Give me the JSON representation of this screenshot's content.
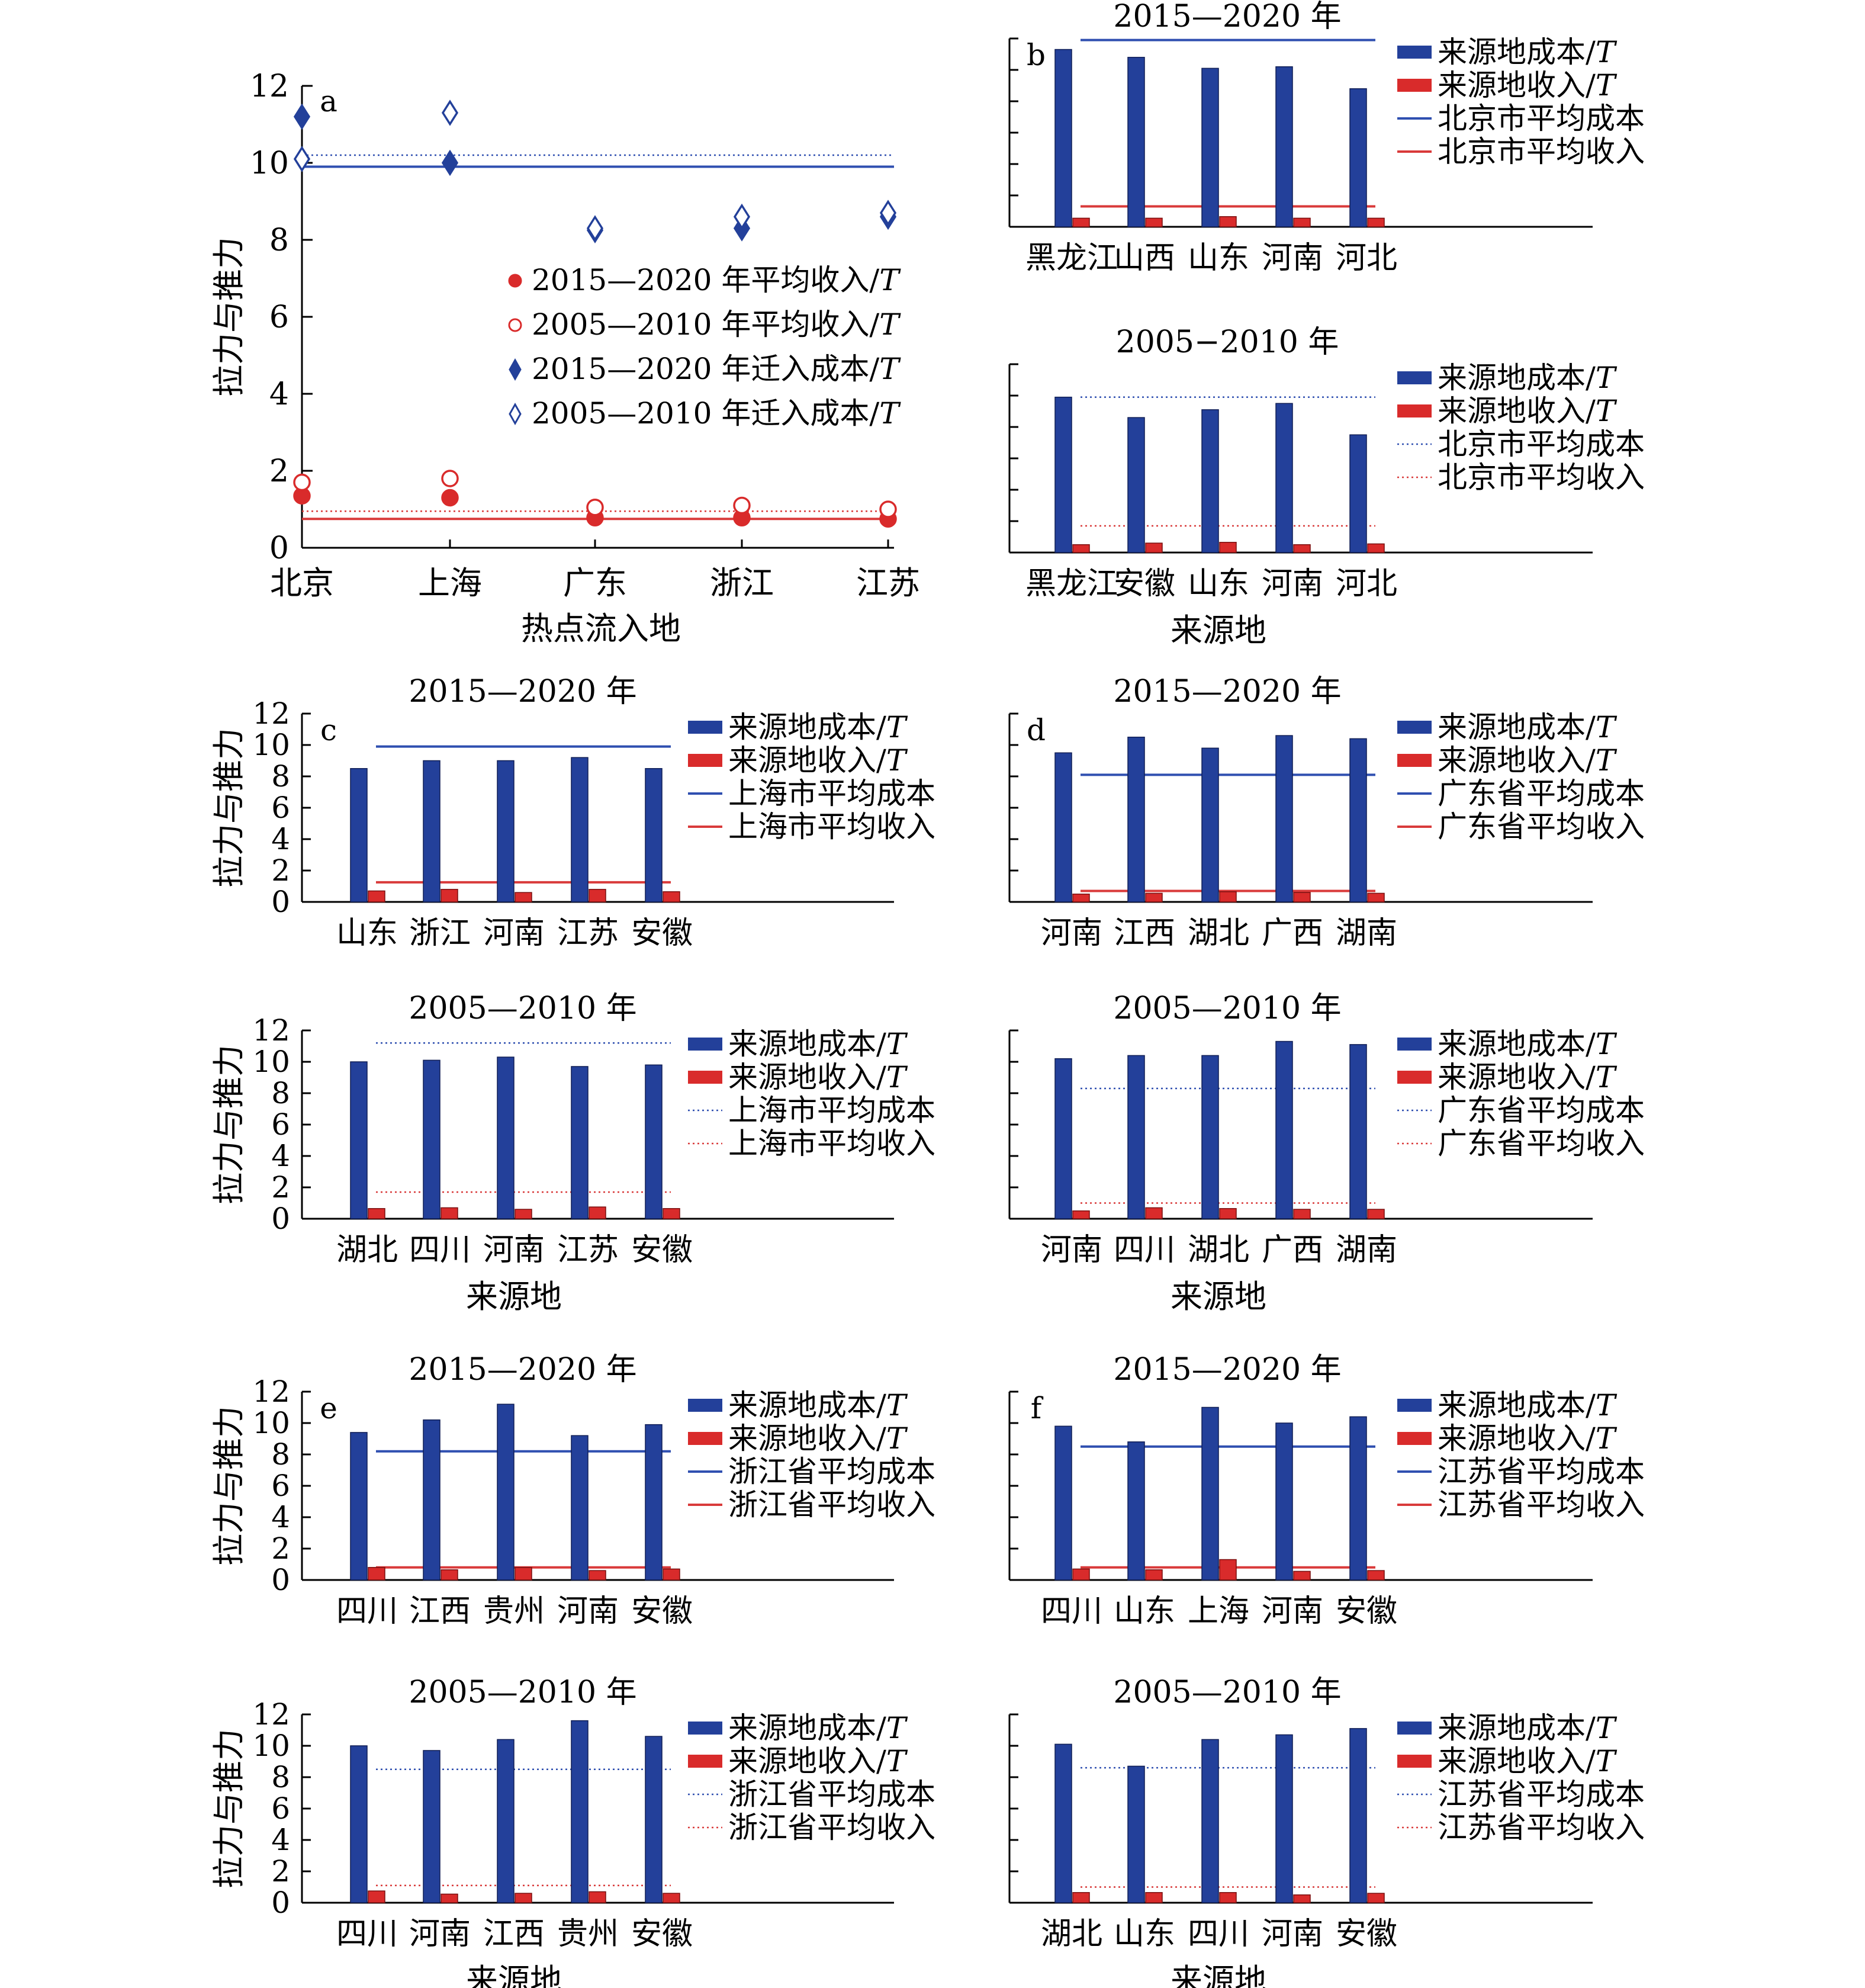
{
  "colors": {
    "cost": "#23409A",
    "income": "#D92B2B",
    "cost_line": "#2F4FB0",
    "income_line": "#D93A3A"
  },
  "chart_data": [
    {
      "id": "a",
      "type": "scatter",
      "panel_label": "a",
      "title": "",
      "xlabel": "热点流入地",
      "ylabel": "拉力与推力",
      "ylim": [
        0,
        12
      ],
      "yticks": [
        "0",
        "2",
        "4",
        "6",
        "8",
        "10",
        "12"
      ],
      "categories": [
        "北京",
        "上海",
        "广东",
        "浙江",
        "江苏"
      ],
      "series": [
        {
          "name": "2015—2020 年平均收入/T",
          "marker": "filled-circle",
          "color": "income",
          "values": [
            1.35,
            1.3,
            0.78,
            0.78,
            0.75
          ]
        },
        {
          "name": "2005—2010 年平均收入/T",
          "marker": "open-circle",
          "color": "income",
          "values": [
            1.7,
            1.8,
            1.05,
            1.1,
            1.0
          ]
        },
        {
          "name": "2015—2020 年迁入成本/T",
          "marker": "filled-diamond",
          "color": "cost",
          "values": [
            11.2,
            10.0,
            8.25,
            8.3,
            8.6
          ]
        },
        {
          "name": "2005—2010 年迁入成本/T",
          "marker": "open-diamond",
          "color": "cost",
          "values": [
            10.1,
            11.3,
            8.3,
            8.6,
            8.7
          ]
        }
      ],
      "reference_lines": [
        {
          "value": 9.9,
          "color": "cost",
          "style": "solid"
        },
        {
          "value": 10.2,
          "color": "cost",
          "style": "dotted"
        },
        {
          "value": 0.75,
          "color": "income",
          "style": "solid"
        },
        {
          "value": 0.95,
          "color": "income",
          "style": "dotted"
        }
      ],
      "legend_position": "center"
    },
    {
      "id": "b1",
      "type": "bar",
      "panel_label": "b",
      "title": "2015—2020 年",
      "xlabel": "",
      "ylabel": "",
      "show_ytick_labels": false,
      "ylim": [
        0,
        12
      ],
      "categories": [
        "黑龙江",
        "山西",
        "山东",
        "河南",
        "河北"
      ],
      "cost": [
        11.3,
        10.8,
        10.1,
        10.2,
        8.8
      ],
      "income": [
        0.55,
        0.55,
        0.65,
        0.55,
        0.55
      ],
      "avg_cost": 11.9,
      "avg_income": 1.3,
      "line_style": "solid",
      "legend": [
        "来源地成本/T",
        "来源地收入/T",
        "北京市平均成本",
        "北京市平均收入"
      ]
    },
    {
      "id": "b2",
      "type": "bar",
      "panel_label": "",
      "title": "2005−2010 年",
      "xlabel": "来源地",
      "ylabel": "",
      "show_ytick_labels": false,
      "ylim": [
        0,
        12
      ],
      "categories": [
        "黑龙江",
        "安徽",
        "山东",
        "河南",
        "河北"
      ],
      "cost": [
        9.9,
        8.6,
        9.1,
        9.5,
        7.5
      ],
      "income": [
        0.5,
        0.6,
        0.65,
        0.5,
        0.55
      ],
      "avg_cost": 9.9,
      "avg_income": 1.7,
      "line_style": "dotted",
      "legend": [
        "来源地成本/T",
        "来源地收入/T",
        "北京市平均成本",
        "北京市平均收入"
      ]
    },
    {
      "id": "c1",
      "type": "bar",
      "panel_label": "c",
      "title": "2015—2020 年",
      "xlabel": "",
      "ylabel": "拉力与推力",
      "show_ytick_labels": true,
      "ylim": [
        0,
        12
      ],
      "yticks": [
        "0",
        "2",
        "4",
        "6",
        "8",
        "10",
        "12"
      ],
      "categories": [
        "山东",
        "浙江",
        "河南",
        "江苏",
        "安徽"
      ],
      "cost": [
        8.5,
        9.0,
        9.0,
        9.2,
        8.5
      ],
      "income": [
        0.7,
        0.8,
        0.6,
        0.8,
        0.65
      ],
      "avg_cost": 9.9,
      "avg_income": 1.25,
      "line_style": "solid",
      "legend": [
        "来源地成本/T",
        "来源地收入/T",
        "上海市平均成本",
        "上海市平均收入"
      ]
    },
    {
      "id": "c2",
      "type": "bar",
      "panel_label": "",
      "title": "2005—2010 年",
      "xlabel": "来源地",
      "ylabel": "拉力与推力",
      "show_ytick_labels": true,
      "ylim": [
        0,
        12
      ],
      "yticks": [
        "0",
        "2",
        "4",
        "6",
        "8",
        "10",
        "12"
      ],
      "categories": [
        "湖北",
        "四川",
        "河南",
        "江苏",
        "安徽"
      ],
      "cost": [
        10.0,
        10.1,
        10.3,
        9.7,
        9.8
      ],
      "income": [
        0.65,
        0.7,
        0.6,
        0.75,
        0.65
      ],
      "avg_cost": 11.2,
      "avg_income": 1.7,
      "line_style": "dotted",
      "legend": [
        "来源地成本/T",
        "来源地收入/T",
        "上海市平均成本",
        "上海市平均收入"
      ]
    },
    {
      "id": "d1",
      "type": "bar",
      "panel_label": "d",
      "title": "2015—2020 年",
      "xlabel": "",
      "ylabel": "",
      "show_ytick_labels": false,
      "ylim": [
        0,
        12
      ],
      "categories": [
        "河南",
        "江西",
        "湖北",
        "广西",
        "湖南"
      ],
      "cost": [
        9.5,
        10.5,
        9.8,
        10.6,
        10.4
      ],
      "income": [
        0.5,
        0.55,
        0.65,
        0.6,
        0.55
      ],
      "avg_cost": 8.1,
      "avg_income": 0.7,
      "line_style": "solid",
      "legend": [
        "来源地成本/T",
        "来源地收入/T",
        "广东省平均成本",
        "广东省平均收入"
      ]
    },
    {
      "id": "d2",
      "type": "bar",
      "panel_label": "",
      "title": "2005—2010 年",
      "xlabel": "来源地",
      "ylabel": "",
      "show_ytick_labels": false,
      "ylim": [
        0,
        12
      ],
      "categories": [
        "河南",
        "四川",
        "湖北",
        "广西",
        "湖南"
      ],
      "cost": [
        10.2,
        10.4,
        10.4,
        11.3,
        11.1
      ],
      "income": [
        0.5,
        0.7,
        0.65,
        0.6,
        0.6
      ],
      "avg_cost": 8.3,
      "avg_income": 1.0,
      "line_style": "dotted",
      "legend": [
        "来源地成本/T",
        "来源地收入/T",
        "广东省平均成本",
        "广东省平均收入"
      ]
    },
    {
      "id": "e1",
      "type": "bar",
      "panel_label": "e",
      "title": "2015—2020 年",
      "xlabel": "",
      "ylabel": "拉力与推力",
      "show_ytick_labels": true,
      "ylim": [
        0,
        12
      ],
      "yticks": [
        "0",
        "2",
        "4",
        "6",
        "8",
        "10",
        "12"
      ],
      "categories": [
        "四川",
        "江西",
        "贵州",
        "河南",
        "安徽"
      ],
      "cost": [
        9.4,
        10.2,
        11.2,
        9.2,
        9.9
      ],
      "income": [
        0.8,
        0.65,
        0.8,
        0.6,
        0.7
      ],
      "avg_cost": 8.2,
      "avg_income": 0.8,
      "line_style": "solid",
      "legend": [
        "来源地成本/T",
        "来源地收入/T",
        "浙江省平均成本",
        "浙江省平均收入"
      ]
    },
    {
      "id": "e2",
      "type": "bar",
      "panel_label": "",
      "title": "2005—2010 年",
      "xlabel": "来源地",
      "ylabel": "拉力与推力",
      "show_ytick_labels": true,
      "ylim": [
        0,
        12
      ],
      "yticks": [
        "0",
        "2",
        "4",
        "6",
        "8",
        "10",
        "12"
      ],
      "categories": [
        "四川",
        "河南",
        "江西",
        "贵州",
        "安徽"
      ],
      "cost": [
        10.0,
        9.7,
        10.4,
        11.6,
        10.6
      ],
      "income": [
        0.75,
        0.55,
        0.6,
        0.7,
        0.6
      ],
      "avg_cost": 8.5,
      "avg_income": 1.1,
      "line_style": "dotted",
      "legend": [
        "来源地成本/T",
        "来源地收入/T",
        "浙江省平均成本",
        "浙江省平均收入"
      ]
    },
    {
      "id": "f1",
      "type": "bar",
      "panel_label": "f",
      "title": "2015—2020 年",
      "xlabel": "",
      "ylabel": "",
      "show_ytick_labels": false,
      "ylim": [
        0,
        12
      ],
      "categories": [
        "四川",
        "山东",
        "上海",
        "河南",
        "安徽"
      ],
      "cost": [
        9.8,
        8.8,
        11.0,
        10.0,
        10.4
      ],
      "income": [
        0.7,
        0.65,
        1.3,
        0.55,
        0.6
      ],
      "avg_cost": 8.5,
      "avg_income": 0.8,
      "line_style": "solid",
      "legend": [
        "来源地成本/T",
        "来源地收入/T",
        "江苏省平均成本",
        "江苏省平均收入"
      ]
    },
    {
      "id": "f2",
      "type": "bar",
      "panel_label": "",
      "title": "2005—2010 年",
      "xlabel": "来源地",
      "ylabel": "",
      "show_ytick_labels": false,
      "ylim": [
        0,
        12
      ],
      "categories": [
        "湖北",
        "山东",
        "四川",
        "河南",
        "安徽"
      ],
      "cost": [
        10.1,
        8.7,
        10.4,
        10.7,
        11.1
      ],
      "income": [
        0.65,
        0.65,
        0.65,
        0.5,
        0.6
      ],
      "avg_cost": 8.6,
      "avg_income": 1.0,
      "line_style": "dotted",
      "legend": [
        "来源地成本/T",
        "来源地收入/T",
        "江苏省平均成本",
        "江苏省平均收入"
      ]
    }
  ]
}
